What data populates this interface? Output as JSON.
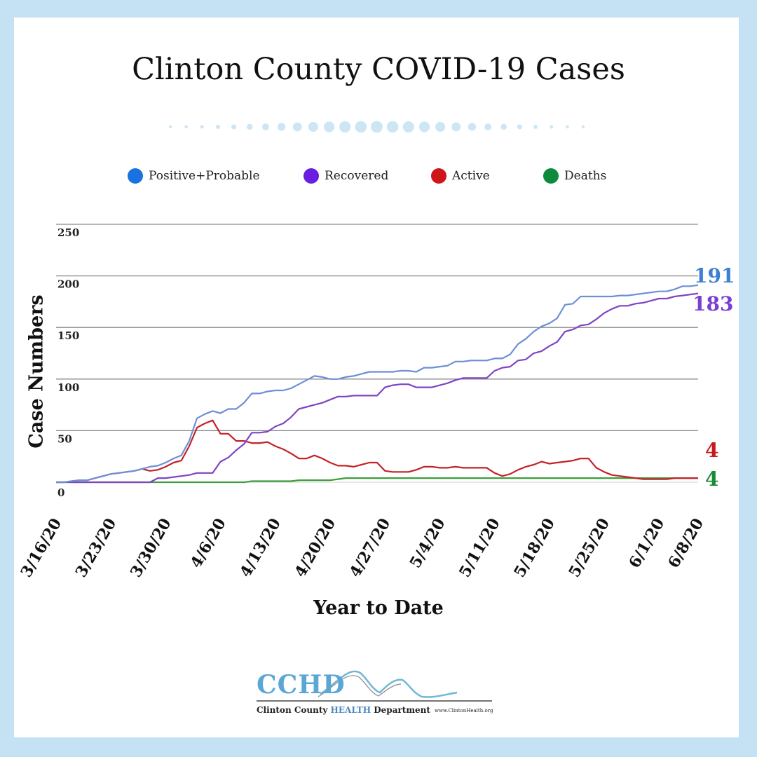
{
  "title": "Clinton County COVID-19 Cases",
  "legend": [
    {
      "label": "Positive+Probable",
      "color": "#1a72e0"
    },
    {
      "label": "Recovered",
      "color": "#6a1fe0"
    },
    {
      "label": "Active",
      "color": "#d0151a"
    },
    {
      "label": "Deaths",
      "color": "#0e8a3c"
    }
  ],
  "end_labels": {
    "positive": "191",
    "recovered": "183",
    "active": "4",
    "deaths": "4"
  },
  "logo": {
    "name": "CCHD",
    "sub_before": "Clinton County ",
    "sub_highlight": "HEALTH",
    "sub_after": " Department",
    "url": "www.ClintonHealth.org"
  },
  "chart_data": {
    "type": "line",
    "title": "Clinton County COVID-19 Cases",
    "xlabel": "Year to Date",
    "ylabel": "Case Numbers",
    "ylim": [
      0,
      250
    ],
    "yticks": [
      0,
      50,
      100,
      150,
      200,
      250
    ],
    "grid": true,
    "legend_position": "top",
    "x_tick_labels": [
      "3/16/20",
      "3/23/20",
      "3/30/20",
      "4/6/20",
      "4/13/20",
      "4/20/20",
      "4/27/20",
      "5/4/20",
      "5/11/20",
      "5/18/20",
      "5/25/20",
      "6/1/20",
      "6/8/20"
    ],
    "x_start": "3/16/20",
    "series": [
      {
        "name": "Positive+Probable",
        "color": "#6d8fd6",
        "points": [
          [
            0,
            0
          ],
          [
            1,
            0
          ],
          [
            2,
            1
          ],
          [
            3,
            2
          ],
          [
            4,
            2
          ],
          [
            5,
            4
          ],
          [
            6,
            6
          ],
          [
            7,
            8
          ],
          [
            8,
            9
          ],
          [
            9,
            10
          ],
          [
            10,
            11
          ],
          [
            11,
            13
          ],
          [
            12,
            15
          ],
          [
            13,
            16
          ],
          [
            14,
            19
          ],
          [
            15,
            23
          ],
          [
            16,
            26
          ],
          [
            17,
            40
          ],
          [
            18,
            62
          ],
          [
            19,
            66
          ],
          [
            20,
            69
          ],
          [
            21,
            67
          ],
          [
            22,
            71
          ],
          [
            23,
            71
          ],
          [
            24,
            77
          ],
          [
            25,
            86
          ],
          [
            26,
            86
          ],
          [
            27,
            88
          ],
          [
            28,
            89
          ],
          [
            29,
            89
          ],
          [
            30,
            91
          ],
          [
            31,
            95
          ],
          [
            32,
            99
          ],
          [
            33,
            103
          ],
          [
            34,
            102
          ],
          [
            35,
            100
          ],
          [
            36,
            100
          ],
          [
            37,
            102
          ],
          [
            38,
            103
          ],
          [
            39,
            105
          ],
          [
            40,
            107
          ],
          [
            41,
            107
          ],
          [
            42,
            107
          ],
          [
            43,
            107
          ],
          [
            44,
            108
          ],
          [
            45,
            108
          ],
          [
            46,
            107
          ],
          [
            47,
            111
          ],
          [
            48,
            111
          ],
          [
            49,
            112
          ],
          [
            50,
            113
          ],
          [
            51,
            117
          ],
          [
            52,
            117
          ],
          [
            53,
            118
          ],
          [
            54,
            118
          ],
          [
            55,
            118
          ],
          [
            56,
            120
          ],
          [
            57,
            120
          ],
          [
            58,
            124
          ],
          [
            59,
            134
          ],
          [
            60,
            139
          ],
          [
            61,
            146
          ],
          [
            62,
            151
          ],
          [
            63,
            154
          ],
          [
            64,
            159
          ],
          [
            65,
            172
          ],
          [
            66,
            173
          ],
          [
            67,
            180
          ],
          [
            68,
            180
          ],
          [
            69,
            180
          ],
          [
            70,
            180
          ],
          [
            71,
            180
          ],
          [
            72,
            181
          ],
          [
            73,
            181
          ],
          [
            74,
            182
          ],
          [
            75,
            183
          ],
          [
            76,
            184
          ],
          [
            77,
            185
          ],
          [
            78,
            185
          ],
          [
            79,
            187
          ],
          [
            80,
            190
          ],
          [
            81,
            190
          ],
          [
            82,
            191
          ]
        ]
      },
      {
        "name": "Recovered",
        "color": "#7e44c4",
        "points": [
          [
            0,
            0
          ],
          [
            10,
            0
          ],
          [
            11,
            0
          ],
          [
            12,
            0
          ],
          [
            13,
            4
          ],
          [
            14,
            4
          ],
          [
            15,
            5
          ],
          [
            16,
            6
          ],
          [
            17,
            7
          ],
          [
            18,
            9
          ],
          [
            19,
            9
          ],
          [
            20,
            9
          ],
          [
            21,
            20
          ],
          [
            22,
            24
          ],
          [
            23,
            31
          ],
          [
            24,
            37
          ],
          [
            25,
            48
          ],
          [
            26,
            48
          ],
          [
            27,
            49
          ],
          [
            28,
            54
          ],
          [
            29,
            57
          ],
          [
            30,
            63
          ],
          [
            31,
            71
          ],
          [
            32,
            73
          ],
          [
            33,
            75
          ],
          [
            34,
            77
          ],
          [
            35,
            80
          ],
          [
            36,
            83
          ],
          [
            37,
            83
          ],
          [
            38,
            84
          ],
          [
            39,
            84
          ],
          [
            40,
            84
          ],
          [
            41,
            84
          ],
          [
            42,
            92
          ],
          [
            43,
            94
          ],
          [
            44,
            95
          ],
          [
            45,
            95
          ],
          [
            46,
            92
          ],
          [
            47,
            92
          ],
          [
            48,
            92
          ],
          [
            49,
            94
          ],
          [
            50,
            96
          ],
          [
            51,
            99
          ],
          [
            52,
            101
          ],
          [
            53,
            101
          ],
          [
            54,
            101
          ],
          [
            55,
            101
          ],
          [
            56,
            108
          ],
          [
            57,
            111
          ],
          [
            58,
            112
          ],
          [
            59,
            118
          ],
          [
            60,
            119
          ],
          [
            61,
            125
          ],
          [
            62,
            127
          ],
          [
            63,
            132
          ],
          [
            64,
            136
          ],
          [
            65,
            146
          ],
          [
            66,
            148
          ],
          [
            67,
            152
          ],
          [
            68,
            153
          ],
          [
            69,
            158
          ],
          [
            70,
            164
          ],
          [
            71,
            168
          ],
          [
            72,
            171
          ],
          [
            73,
            171
          ],
          [
            74,
            173
          ],
          [
            75,
            174
          ],
          [
            76,
            176
          ],
          [
            77,
            178
          ],
          [
            78,
            178
          ],
          [
            79,
            180
          ],
          [
            80,
            181
          ],
          [
            81,
            182
          ],
          [
            82,
            183
          ]
        ]
      },
      {
        "name": "Active",
        "color": "#c42228",
        "points": [
          [
            0,
            0
          ],
          [
            1,
            0
          ],
          [
            2,
            1
          ],
          [
            3,
            2
          ],
          [
            4,
            2
          ],
          [
            5,
            4
          ],
          [
            6,
            6
          ],
          [
            7,
            8
          ],
          [
            8,
            9
          ],
          [
            9,
            10
          ],
          [
            10,
            11
          ],
          [
            11,
            13
          ],
          [
            12,
            11
          ],
          [
            13,
            12
          ],
          [
            14,
            15
          ],
          [
            15,
            19
          ],
          [
            16,
            21
          ],
          [
            17,
            35
          ],
          [
            18,
            53
          ],
          [
            19,
            57
          ],
          [
            20,
            60
          ],
          [
            21,
            47
          ],
          [
            22,
            47
          ],
          [
            23,
            40
          ],
          [
            24,
            40
          ],
          [
            25,
            38
          ],
          [
            26,
            38
          ],
          [
            27,
            39
          ],
          [
            28,
            35
          ],
          [
            29,
            32
          ],
          [
            30,
            28
          ],
          [
            31,
            23
          ],
          [
            32,
            23
          ],
          [
            33,
            26
          ],
          [
            34,
            23
          ],
          [
            35,
            19
          ],
          [
            36,
            16
          ],
          [
            37,
            16
          ],
          [
            38,
            15
          ],
          [
            39,
            17
          ],
          [
            40,
            19
          ],
          [
            41,
            19
          ],
          [
            42,
            11
          ],
          [
            43,
            10
          ],
          [
            44,
            10
          ],
          [
            45,
            10
          ],
          [
            46,
            12
          ],
          [
            47,
            15
          ],
          [
            48,
            15
          ],
          [
            49,
            14
          ],
          [
            50,
            14
          ],
          [
            51,
            15
          ],
          [
            52,
            14
          ],
          [
            53,
            14
          ],
          [
            54,
            14
          ],
          [
            55,
            14
          ],
          [
            56,
            9
          ],
          [
            57,
            6
          ],
          [
            58,
            8
          ],
          [
            59,
            12
          ],
          [
            60,
            15
          ],
          [
            61,
            17
          ],
          [
            62,
            20
          ],
          [
            63,
            18
          ],
          [
            64,
            19
          ],
          [
            65,
            20
          ],
          [
            66,
            21
          ],
          [
            67,
            23
          ],
          [
            68,
            23
          ],
          [
            69,
            14
          ],
          [
            70,
            10
          ],
          [
            71,
            7
          ],
          [
            72,
            6
          ],
          [
            73,
            5
          ],
          [
            74,
            4
          ],
          [
            75,
            3
          ],
          [
            76,
            3
          ],
          [
            77,
            3
          ],
          [
            78,
            3
          ],
          [
            79,
            4
          ],
          [
            80,
            4
          ],
          [
            81,
            4
          ],
          [
            82,
            4
          ]
        ]
      },
      {
        "name": "Deaths",
        "color": "#3d9e3a",
        "points": [
          [
            0,
            0
          ],
          [
            24,
            0
          ],
          [
            25,
            1
          ],
          [
            26,
            1
          ],
          [
            27,
            1
          ],
          [
            28,
            1
          ],
          [
            29,
            1
          ],
          [
            30,
            1
          ],
          [
            31,
            2
          ],
          [
            32,
            2
          ],
          [
            33,
            2
          ],
          [
            34,
            2
          ],
          [
            35,
            2
          ],
          [
            36,
            3
          ],
          [
            37,
            4
          ],
          [
            38,
            4
          ],
          [
            39,
            4
          ],
          [
            40,
            4
          ],
          [
            41,
            4
          ],
          [
            42,
            4
          ],
          [
            43,
            4
          ],
          [
            44,
            4
          ],
          [
            45,
            4
          ],
          [
            46,
            4
          ],
          [
            47,
            4
          ],
          [
            48,
            4
          ],
          [
            49,
            4
          ],
          [
            50,
            4
          ],
          [
            51,
            4
          ],
          [
            52,
            4
          ],
          [
            53,
            4
          ],
          [
            54,
            4
          ],
          [
            55,
            4
          ],
          [
            56,
            4
          ],
          [
            57,
            4
          ],
          [
            58,
            4
          ],
          [
            59,
            4
          ],
          [
            60,
            4
          ],
          [
            61,
            4
          ],
          [
            62,
            4
          ],
          [
            63,
            4
          ],
          [
            64,
            4
          ],
          [
            65,
            4
          ],
          [
            66,
            4
          ],
          [
            67,
            4
          ],
          [
            68,
            4
          ],
          [
            69,
            4
          ],
          [
            70,
            4
          ],
          [
            71,
            4
          ],
          [
            72,
            4
          ],
          [
            73,
            4
          ],
          [
            74,
            4
          ],
          [
            75,
            4
          ],
          [
            76,
            4
          ],
          [
            77,
            4
          ],
          [
            78,
            4
          ],
          [
            79,
            4
          ],
          [
            80,
            4
          ],
          [
            81,
            4
          ],
          [
            82,
            4
          ]
        ]
      }
    ]
  }
}
